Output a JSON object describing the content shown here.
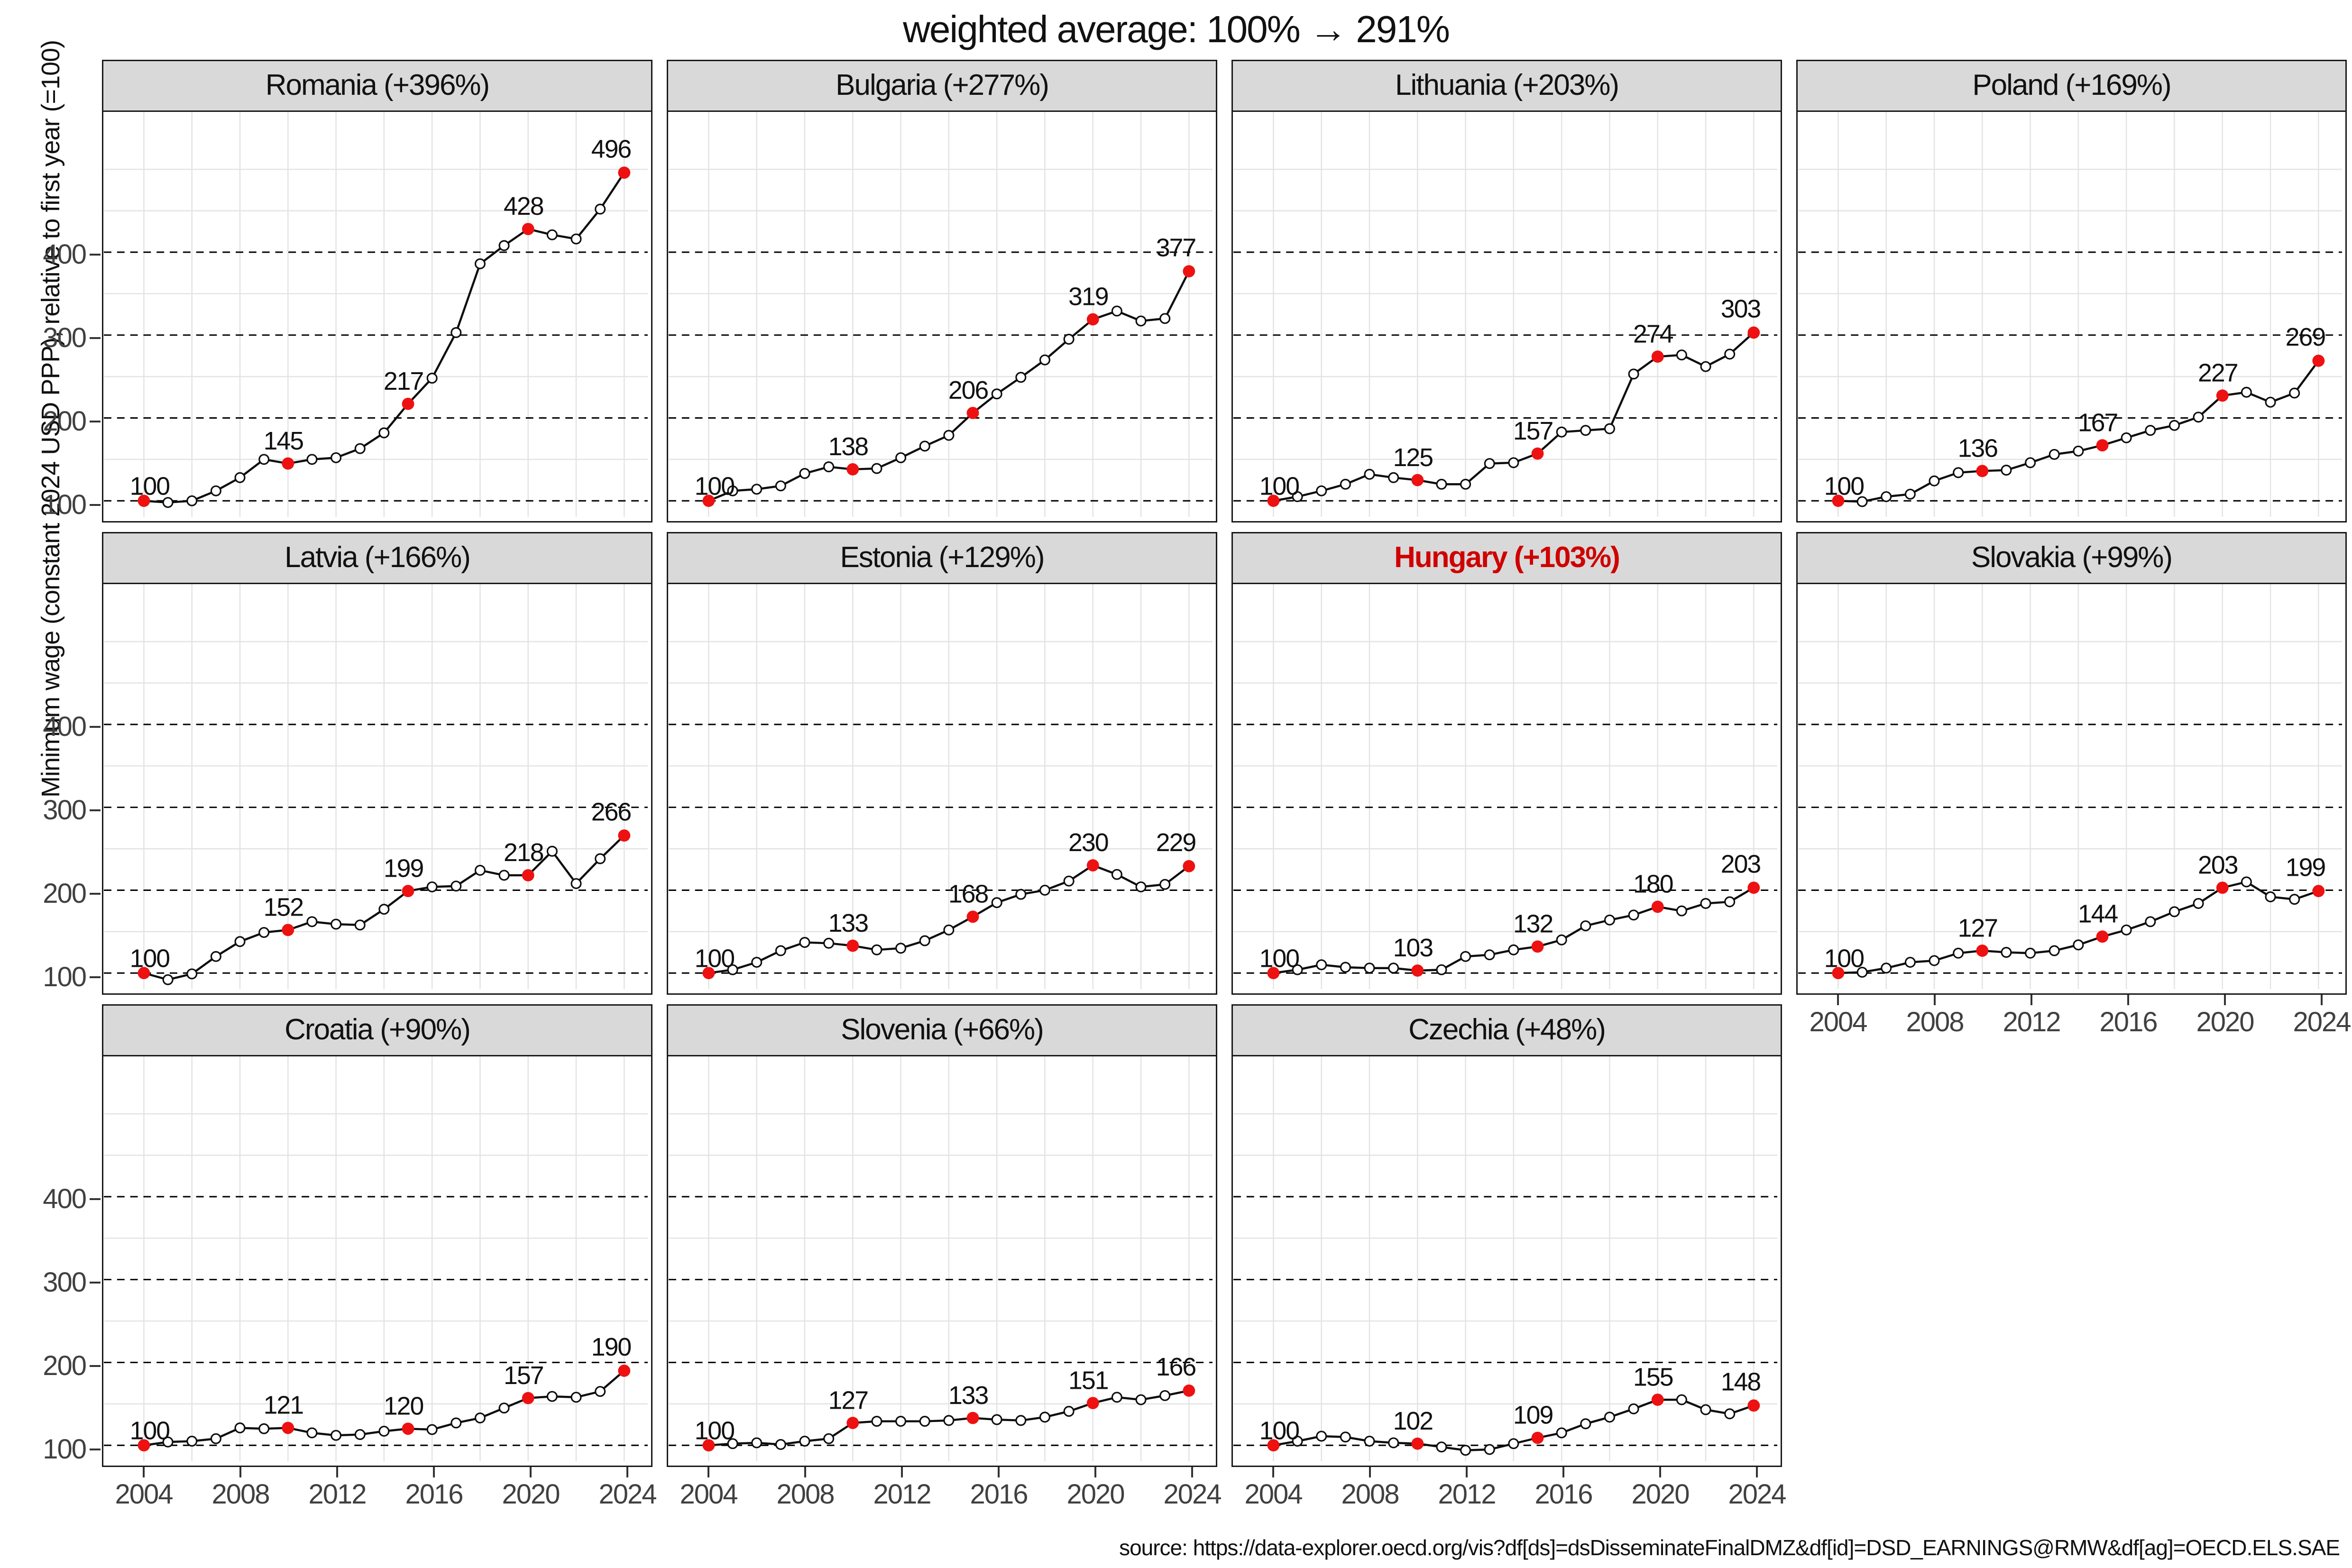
{
  "chart_data": {
    "type": "line",
    "title": "weighted average: 100% → 291%",
    "ylabel": "Minimum wage (constant 2024 USD PPP), relative to first year (=100)",
    "source": "source: https://data-explorer.oecd.org/vis?df[ds]=dsDisseminateFinalDMZ&df[id]=DSD_EARNINGS@RMW&df[ag]=OECD.ELS.SAE",
    "x": [
      2004,
      2005,
      2006,
      2007,
      2008,
      2009,
      2010,
      2011,
      2012,
      2013,
      2014,
      2015,
      2016,
      2017,
      2018,
      2019,
      2020,
      2021,
      2022,
      2023,
      2024
    ],
    "x_ticks": [
      2004,
      2008,
      2012,
      2016,
      2020,
      2024
    ],
    "y_ticks": [
      100,
      200,
      300,
      400
    ],
    "y_minor": [
      150,
      250,
      350,
      450,
      500
    ],
    "ylim": [
      80,
      570
    ],
    "grid": "light minor gridlines; black dashed horizontal lines at 100/200/300/400",
    "legend": "none",
    "labeled_years": [
      2004,
      2010,
      2015,
      2020,
      2024
    ],
    "panels": [
      {
        "country": "Romania",
        "label": "Romania (+396%)",
        "pct": "+396%",
        "highlight": false,
        "values": [
          100,
          98,
          100,
          112,
          128,
          150,
          145,
          150,
          152,
          163,
          182,
          217,
          248,
          303,
          386,
          408,
          428,
          421,
          416,
          452,
          496
        ],
        "annotations": {
          "2004": 100,
          "2010": 145,
          "2015": 217,
          "2020": 428,
          "2024": 496
        }
      },
      {
        "country": "Bulgaria",
        "label": "Bulgaria (+277%)",
        "pct": "+277%",
        "highlight": false,
        "values": [
          100,
          112,
          114,
          118,
          133,
          141,
          138,
          139,
          152,
          166,
          179,
          206,
          229,
          249,
          270,
          295,
          319,
          329,
          317,
          320,
          377
        ],
        "annotations": {
          "2004": 100,
          "2010": 138,
          "2015": 206,
          "2020": 319,
          "2024": 377
        }
      },
      {
        "country": "Lithuania",
        "label": "Lithuania (+203%)",
        "pct": "+203%",
        "highlight": false,
        "values": [
          100,
          105,
          112,
          120,
          132,
          128,
          125,
          120,
          120,
          145,
          146,
          157,
          183,
          185,
          187,
          253,
          274,
          276,
          262,
          277,
          303
        ],
        "annotations": {
          "2004": 100,
          "2010": 125,
          "2015": 157,
          "2020": 274,
          "2024": 303
        }
      },
      {
        "country": "Poland",
        "label": "Poland (+169%)",
        "pct": "+169%",
        "highlight": false,
        "values": [
          100,
          99,
          105,
          108,
          124,
          134,
          136,
          137,
          146,
          156,
          160,
          167,
          176,
          185,
          191,
          201,
          227,
          231,
          219,
          230,
          269
        ],
        "annotations": {
          "2004": 100,
          "2010": 136,
          "2015": 167,
          "2020": 227,
          "2024": 269
        }
      },
      {
        "country": "Latvia",
        "label": "Latvia (+166%)",
        "pct": "+166%",
        "highlight": false,
        "values": [
          100,
          92,
          99,
          120,
          138,
          149,
          152,
          162,
          159,
          158,
          177,
          199,
          204,
          205,
          224,
          218,
          218,
          247,
          208,
          238,
          266
        ],
        "annotations": {
          "2004": 100,
          "2010": 152,
          "2015": 199,
          "2020": 218,
          "2024": 266
        }
      },
      {
        "country": "Estonia",
        "label": "Estonia (+129%)",
        "pct": "+129%",
        "highlight": false,
        "values": [
          100,
          104,
          113,
          127,
          137,
          136,
          133,
          128,
          130,
          139,
          152,
          168,
          185,
          195,
          200,
          211,
          230,
          219,
          204,
          207,
          229
        ],
        "annotations": {
          "2004": 100,
          "2010": 133,
          "2015": 168,
          "2020": 230,
          "2024": 229
        }
      },
      {
        "country": "Hungary",
        "label": "Hungary (+103%)",
        "pct": "+103%",
        "highlight": true,
        "values": [
          100,
          104,
          110,
          107,
          106,
          106,
          103,
          104,
          120,
          122,
          128,
          132,
          140,
          157,
          164,
          170,
          180,
          175,
          184,
          186,
          203
        ],
        "annotations": {
          "2004": 100,
          "2010": 103,
          "2015": 132,
          "2020": 180,
          "2024": 203
        }
      },
      {
        "country": "Slovakia",
        "label": "Slovakia (+99%)",
        "pct": "+99%",
        "highlight": false,
        "values": [
          100,
          101,
          106,
          113,
          115,
          124,
          127,
          125,
          124,
          127,
          134,
          144,
          152,
          162,
          174,
          184,
          203,
          210,
          192,
          189,
          199
        ],
        "annotations": {
          "2004": 100,
          "2010": 127,
          "2015": 144,
          "2020": 203,
          "2024": 199
        }
      },
      {
        "country": "Croatia",
        "label": "Croatia (+90%)",
        "pct": "+90%",
        "highlight": false,
        "values": [
          100,
          104,
          105,
          108,
          121,
          120,
          121,
          115,
          112,
          113,
          117,
          120,
          119,
          127,
          133,
          145,
          157,
          159,
          158,
          165,
          190
        ],
        "annotations": {
          "2004": 100,
          "2010": 121,
          "2015": 120,
          "2020": 157,
          "2024": 190
        }
      },
      {
        "country": "Slovenia",
        "label": "Slovenia (+66%)",
        "pct": "+66%",
        "highlight": false,
        "values": [
          100,
          102,
          103,
          101,
          105,
          108,
          127,
          129,
          129,
          129,
          130,
          133,
          131,
          130,
          134,
          141,
          151,
          158,
          155,
          160,
          166
        ],
        "annotations": {
          "2004": 100,
          "2010": 127,
          "2015": 133,
          "2020": 151,
          "2024": 166
        }
      },
      {
        "country": "Czechia",
        "label": "Czechia (+48%)",
        "pct": "+48%",
        "highlight": false,
        "values": [
          100,
          105,
          111,
          110,
          105,
          103,
          102,
          98,
          94,
          95,
          102,
          109,
          115,
          126,
          134,
          144,
          155,
          155,
          143,
          138,
          148
        ],
        "annotations": {
          "2004": 100,
          "2010": 102,
          "2015": 109,
          "2020": 155,
          "2024": 148
        }
      }
    ],
    "colors": {
      "line": "#0d0d0d",
      "marker_fill": "#ffffff",
      "highlight_dot": "#ee1111",
      "highlight_title": "#cf0000",
      "strip_bg": "#d9d9d9",
      "panel_border": "#1a1a1a",
      "grid_minor": "#e3e3e3",
      "dashed_line": "#000000",
      "axis_text": "#404040"
    }
  }
}
